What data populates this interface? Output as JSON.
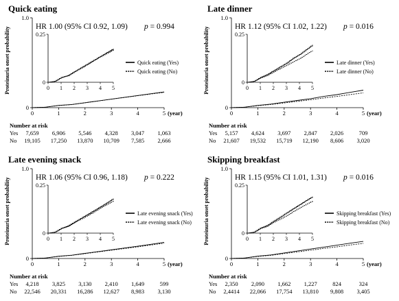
{
  "chart_data": [
    {
      "type": "line",
      "title": "Quick eating",
      "annotation": "HR 1.00 (95% CI 0.92, 1.09)",
      "p_label": "p",
      "p_value": "= 0.994",
      "ylabel": "Proteinuria onset probability",
      "x_unit_label": "(year)",
      "xlim": [
        0,
        5
      ],
      "ylim": [
        0,
        1
      ],
      "x_ticks": [
        "0",
        "1",
        "2",
        "3",
        "4",
        "5"
      ],
      "y_ticks": [
        "0",
        "1.0"
      ],
      "inset": {
        "xlim": [
          0,
          5
        ],
        "ylim": [
          0,
          0.25
        ],
        "x_ticks": [
          "0",
          "1",
          "2",
          "3",
          "4",
          "5"
        ],
        "y_ticks": [
          "0",
          "0.25"
        ]
      },
      "series": [
        {
          "name": "Quick eating (Yes)",
          "dash": false,
          "x": [
            0,
            0.5,
            1,
            1.5,
            2,
            2.5,
            3,
            3.5,
            4,
            4.5,
            5
          ],
          "y": [
            0,
            0.005,
            0.025,
            0.035,
            0.055,
            0.075,
            0.095,
            0.115,
            0.135,
            0.155,
            0.175
          ]
        },
        {
          "name": "Quick eating (No)",
          "dash": true,
          "x": [
            0,
            0.5,
            1,
            1.5,
            2,
            2.5,
            3,
            3.5,
            4,
            4.5,
            5
          ],
          "y": [
            0,
            0.005,
            0.024,
            0.034,
            0.054,
            0.074,
            0.094,
            0.114,
            0.133,
            0.152,
            0.17
          ]
        }
      ],
      "risk_table": {
        "header": "Number at risk",
        "rows": [
          {
            "label": "Yes",
            "values": [
              "7,659",
              "6,906",
              "5,546",
              "4,328",
              "3,047",
              "1,063"
            ]
          },
          {
            "label": "No",
            "values": [
              "19,105",
              "17,250",
              "13,870",
              "10,709",
              "7,585",
              "2,666"
            ]
          }
        ]
      }
    },
    {
      "type": "line",
      "title": "Late dinner",
      "annotation": "HR 1.12 (95% CI 1.02, 1.22)",
      "p_label": "p",
      "p_value": "= 0.016",
      "ylabel": "Proteinuria onset probability",
      "x_unit_label": "(year)",
      "xlim": [
        0,
        5
      ],
      "ylim": [
        0,
        1
      ],
      "x_ticks": [
        "0",
        "1",
        "2",
        "3",
        "4",
        "5"
      ],
      "y_ticks": [
        "0",
        "1.0"
      ],
      "inset": {
        "xlim": [
          0,
          5
        ],
        "ylim": [
          0,
          0.25
        ],
        "x_ticks": [
          "0",
          "1",
          "2",
          "3",
          "4",
          "5"
        ],
        "y_ticks": [
          "0",
          "0.25"
        ]
      },
      "series": [
        {
          "name": "Late dinner (Yes)",
          "dash": false,
          "x": [
            0,
            0.5,
            1,
            1.5,
            2,
            2.5,
            3,
            3.5,
            4,
            4.5,
            5
          ],
          "y": [
            0,
            0.005,
            0.025,
            0.04,
            0.06,
            0.08,
            0.1,
            0.125,
            0.145,
            0.17,
            0.195
          ]
        },
        {
          "name": "Late dinner (No)",
          "dash": true,
          "x": [
            0,
            0.5,
            1,
            1.5,
            2,
            2.5,
            3,
            3.5,
            4,
            4.5,
            5
          ],
          "y": [
            0,
            0.005,
            0.022,
            0.035,
            0.053,
            0.07,
            0.088,
            0.108,
            0.125,
            0.145,
            0.165
          ]
        }
      ],
      "risk_table": {
        "header": "Number at risk",
        "rows": [
          {
            "label": "Yes",
            "values": [
              "5,157",
              "4,624",
              "3,697",
              "2,847",
              "2,026",
              "709"
            ]
          },
          {
            "label": "No",
            "values": [
              "21,607",
              "19,532",
              "15,719",
              "12,190",
              "8,606",
              "3,020"
            ]
          }
        ]
      }
    },
    {
      "type": "line",
      "title": "Late evening snack",
      "annotation": "HR 1.06 (95% CI 0.96, 1.18)",
      "p_label": "p",
      "p_value": "= 0.222",
      "ylabel": "Proteinuria onset probability",
      "x_unit_label": "(year)",
      "xlim": [
        0,
        5
      ],
      "ylim": [
        0,
        1
      ],
      "x_ticks": [
        "0",
        "1",
        "2",
        "3",
        "4",
        "5"
      ],
      "y_ticks": [
        "0",
        "1.0"
      ],
      "inset": {
        "xlim": [
          0,
          5
        ],
        "ylim": [
          0,
          0.25
        ],
        "x_ticks": [
          "0",
          "1",
          "2",
          "3",
          "4",
          "5"
        ],
        "y_ticks": [
          "0",
          "0.25"
        ]
      },
      "series": [
        {
          "name": "Late evening snack (Yes)",
          "dash": false,
          "x": [
            0,
            0.5,
            1,
            1.5,
            2,
            2.5,
            3,
            3.5,
            4,
            4.5,
            5
          ],
          "y": [
            0,
            0.005,
            0.025,
            0.037,
            0.057,
            0.077,
            0.097,
            0.117,
            0.137,
            0.158,
            0.18
          ]
        },
        {
          "name": "Late evening snack (No)",
          "dash": true,
          "x": [
            0,
            0.5,
            1,
            1.5,
            2,
            2.5,
            3,
            3.5,
            4,
            4.5,
            5
          ],
          "y": [
            0,
            0.005,
            0.023,
            0.035,
            0.054,
            0.073,
            0.092,
            0.111,
            0.13,
            0.15,
            0.17
          ]
        }
      ],
      "risk_table": {
        "header": "Number at risk",
        "rows": [
          {
            "label": "Yes",
            "values": [
              "4,218",
              "3,825",
              "3,130",
              "2,410",
              "1,649",
              "599"
            ]
          },
          {
            "label": "No",
            "values": [
              "22,546",
              "20,331",
              "16,286",
              "12,627",
              "8,983",
              "3,130"
            ]
          }
        ]
      }
    },
    {
      "type": "line",
      "title": "Skipping breakfast",
      "annotation": "HR 1.15 (95% CI 1.01, 1.31)",
      "p_label": "p",
      "p_value": "= 0.016",
      "ylabel": "Proteinuria onset probability",
      "x_unit_label": "(year)",
      "xlim": [
        0,
        5
      ],
      "ylim": [
        0,
        1
      ],
      "x_ticks": [
        "0",
        "1",
        "2",
        "3",
        "4",
        "5"
      ],
      "y_ticks": [
        "0",
        "1.0"
      ],
      "inset": {
        "xlim": [
          0,
          5
        ],
        "ylim": [
          0,
          0.25
        ],
        "x_ticks": [
          "0",
          "1",
          "2",
          "3",
          "4",
          "5"
        ],
        "y_ticks": [
          "0",
          "0.25"
        ]
      },
      "series": [
        {
          "name": "Skipping breakfast (Yes)",
          "dash": false,
          "x": [
            0,
            0.5,
            1,
            1.5,
            2,
            2.5,
            3,
            3.5,
            4,
            4.5,
            5
          ],
          "y": [
            0,
            0.005,
            0.026,
            0.04,
            0.062,
            0.083,
            0.105,
            0.127,
            0.148,
            0.17,
            0.19
          ]
        },
        {
          "name": "Skipping breakfast (No)",
          "dash": true,
          "x": [
            0,
            0.5,
            1,
            1.5,
            2,
            2.5,
            3,
            3.5,
            4,
            4.5,
            5
          ],
          "y": [
            0,
            0.005,
            0.023,
            0.035,
            0.055,
            0.073,
            0.092,
            0.112,
            0.13,
            0.15,
            0.168
          ]
        }
      ],
      "risk_table": {
        "header": "Number at risk",
        "rows": [
          {
            "label": "Yes",
            "values": [
              "2,350",
              "2,090",
              "1,662",
              "1,227",
              "824",
              "324"
            ]
          },
          {
            "label": "No",
            "values": [
              "2,4414",
              "22,066",
              "17,754",
              "13,810",
              "9,808",
              "3,405"
            ]
          }
        ]
      }
    }
  ]
}
